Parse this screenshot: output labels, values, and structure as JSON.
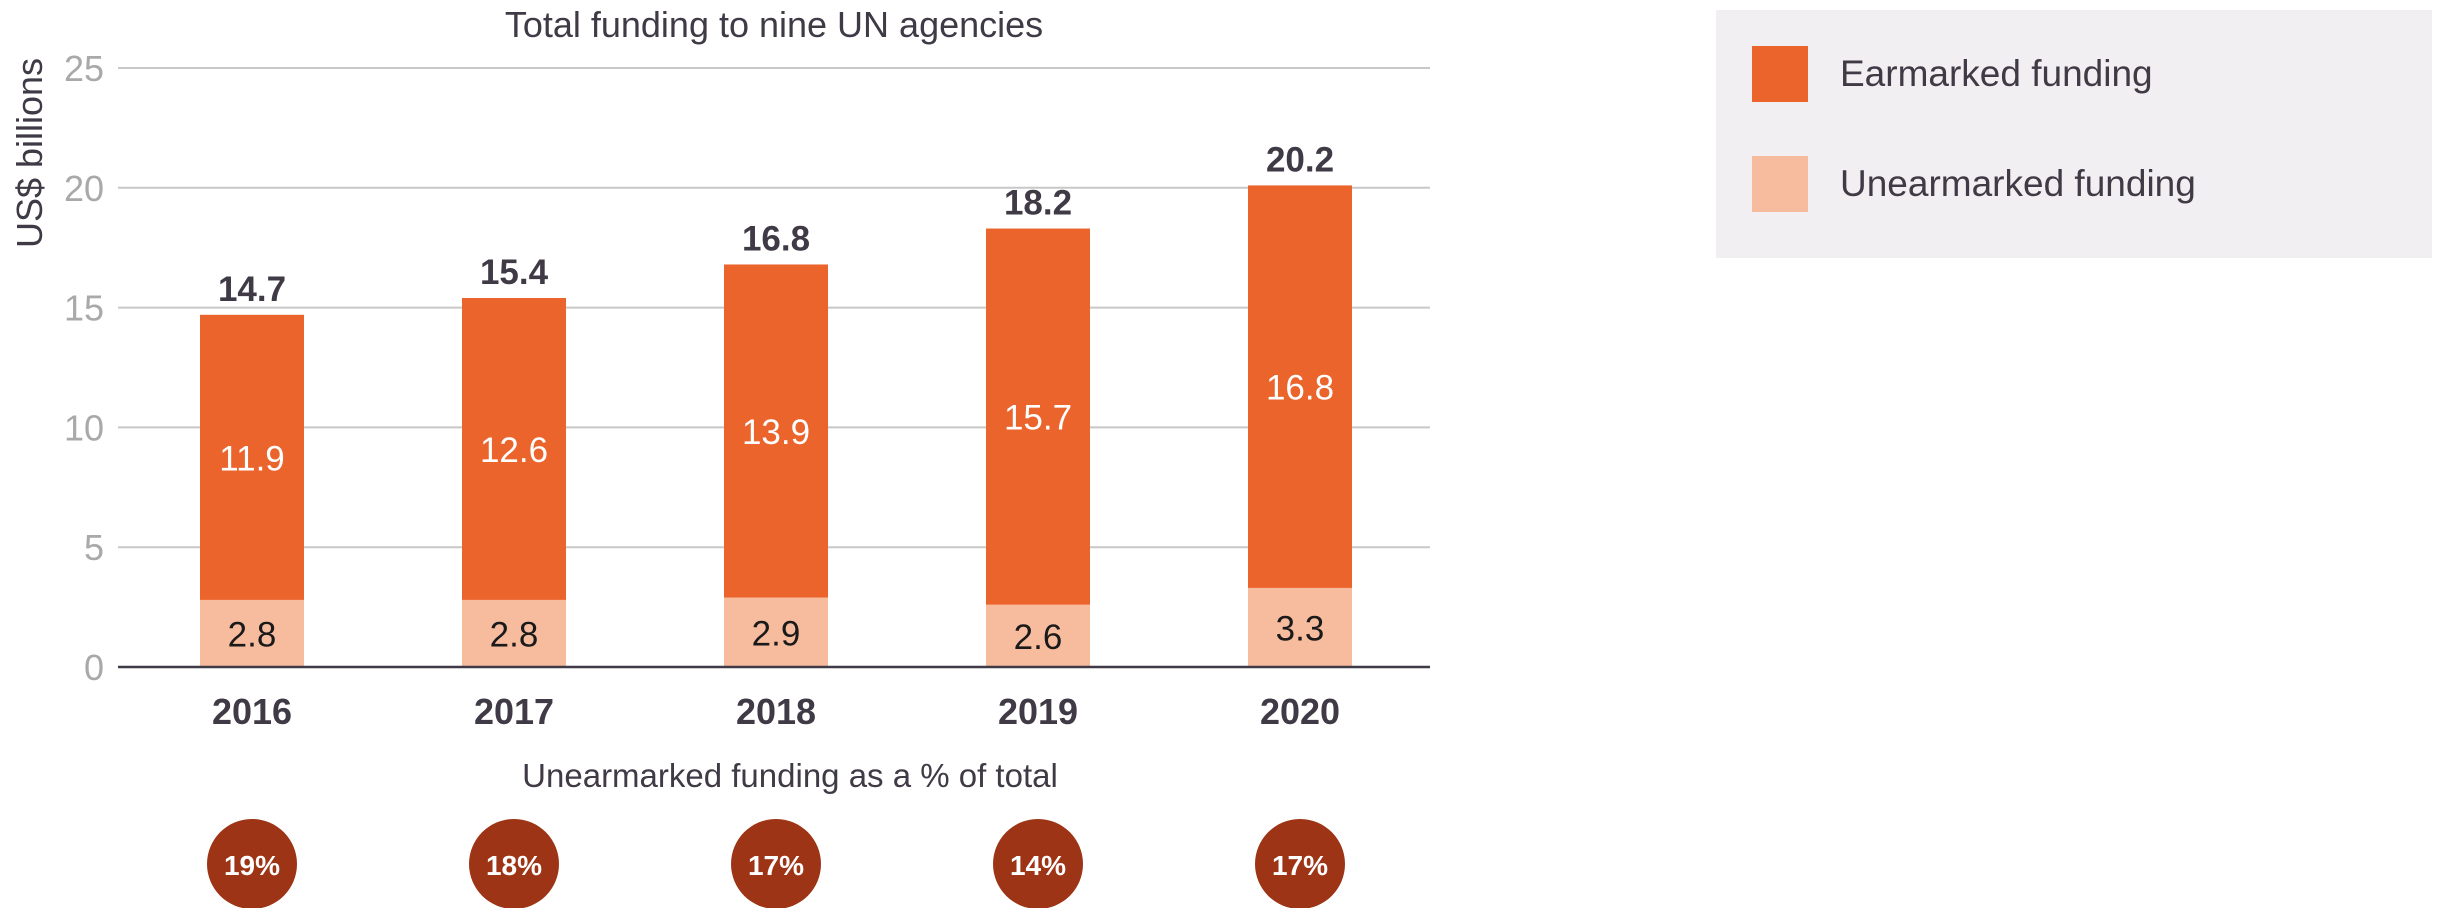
{
  "chart_data": {
    "type": "bar",
    "stacked": true,
    "title": "Total funding to nine UN agencies",
    "ylabel": "US$ billions",
    "xlabel": "",
    "ylim": [
      0,
      25
    ],
    "yticks": [
      0,
      5,
      10,
      15,
      20,
      25
    ],
    "grid": true,
    "legend_position": "top-right",
    "categories": [
      "2016",
      "2017",
      "2018",
      "2019",
      "2020"
    ],
    "series": [
      {
        "name": "Unearmarked funding",
        "color": "#f7bb9d",
        "values": [
          2.8,
          2.8,
          2.9,
          2.6,
          3.3
        ]
      },
      {
        "name": "Earmarked funding",
        "color": "#eb642c",
        "values": [
          11.9,
          12.6,
          13.9,
          15.7,
          16.8
        ]
      }
    ],
    "totals": [
      "14.7",
      "15.4",
      "16.8",
      "18.2",
      "20.2"
    ],
    "percent_title": "Unearmarked funding as a % of total",
    "percentages": [
      "19%",
      "18%",
      "17%",
      "14%",
      "17%"
    ],
    "percent_color": "#9e3416"
  }
}
